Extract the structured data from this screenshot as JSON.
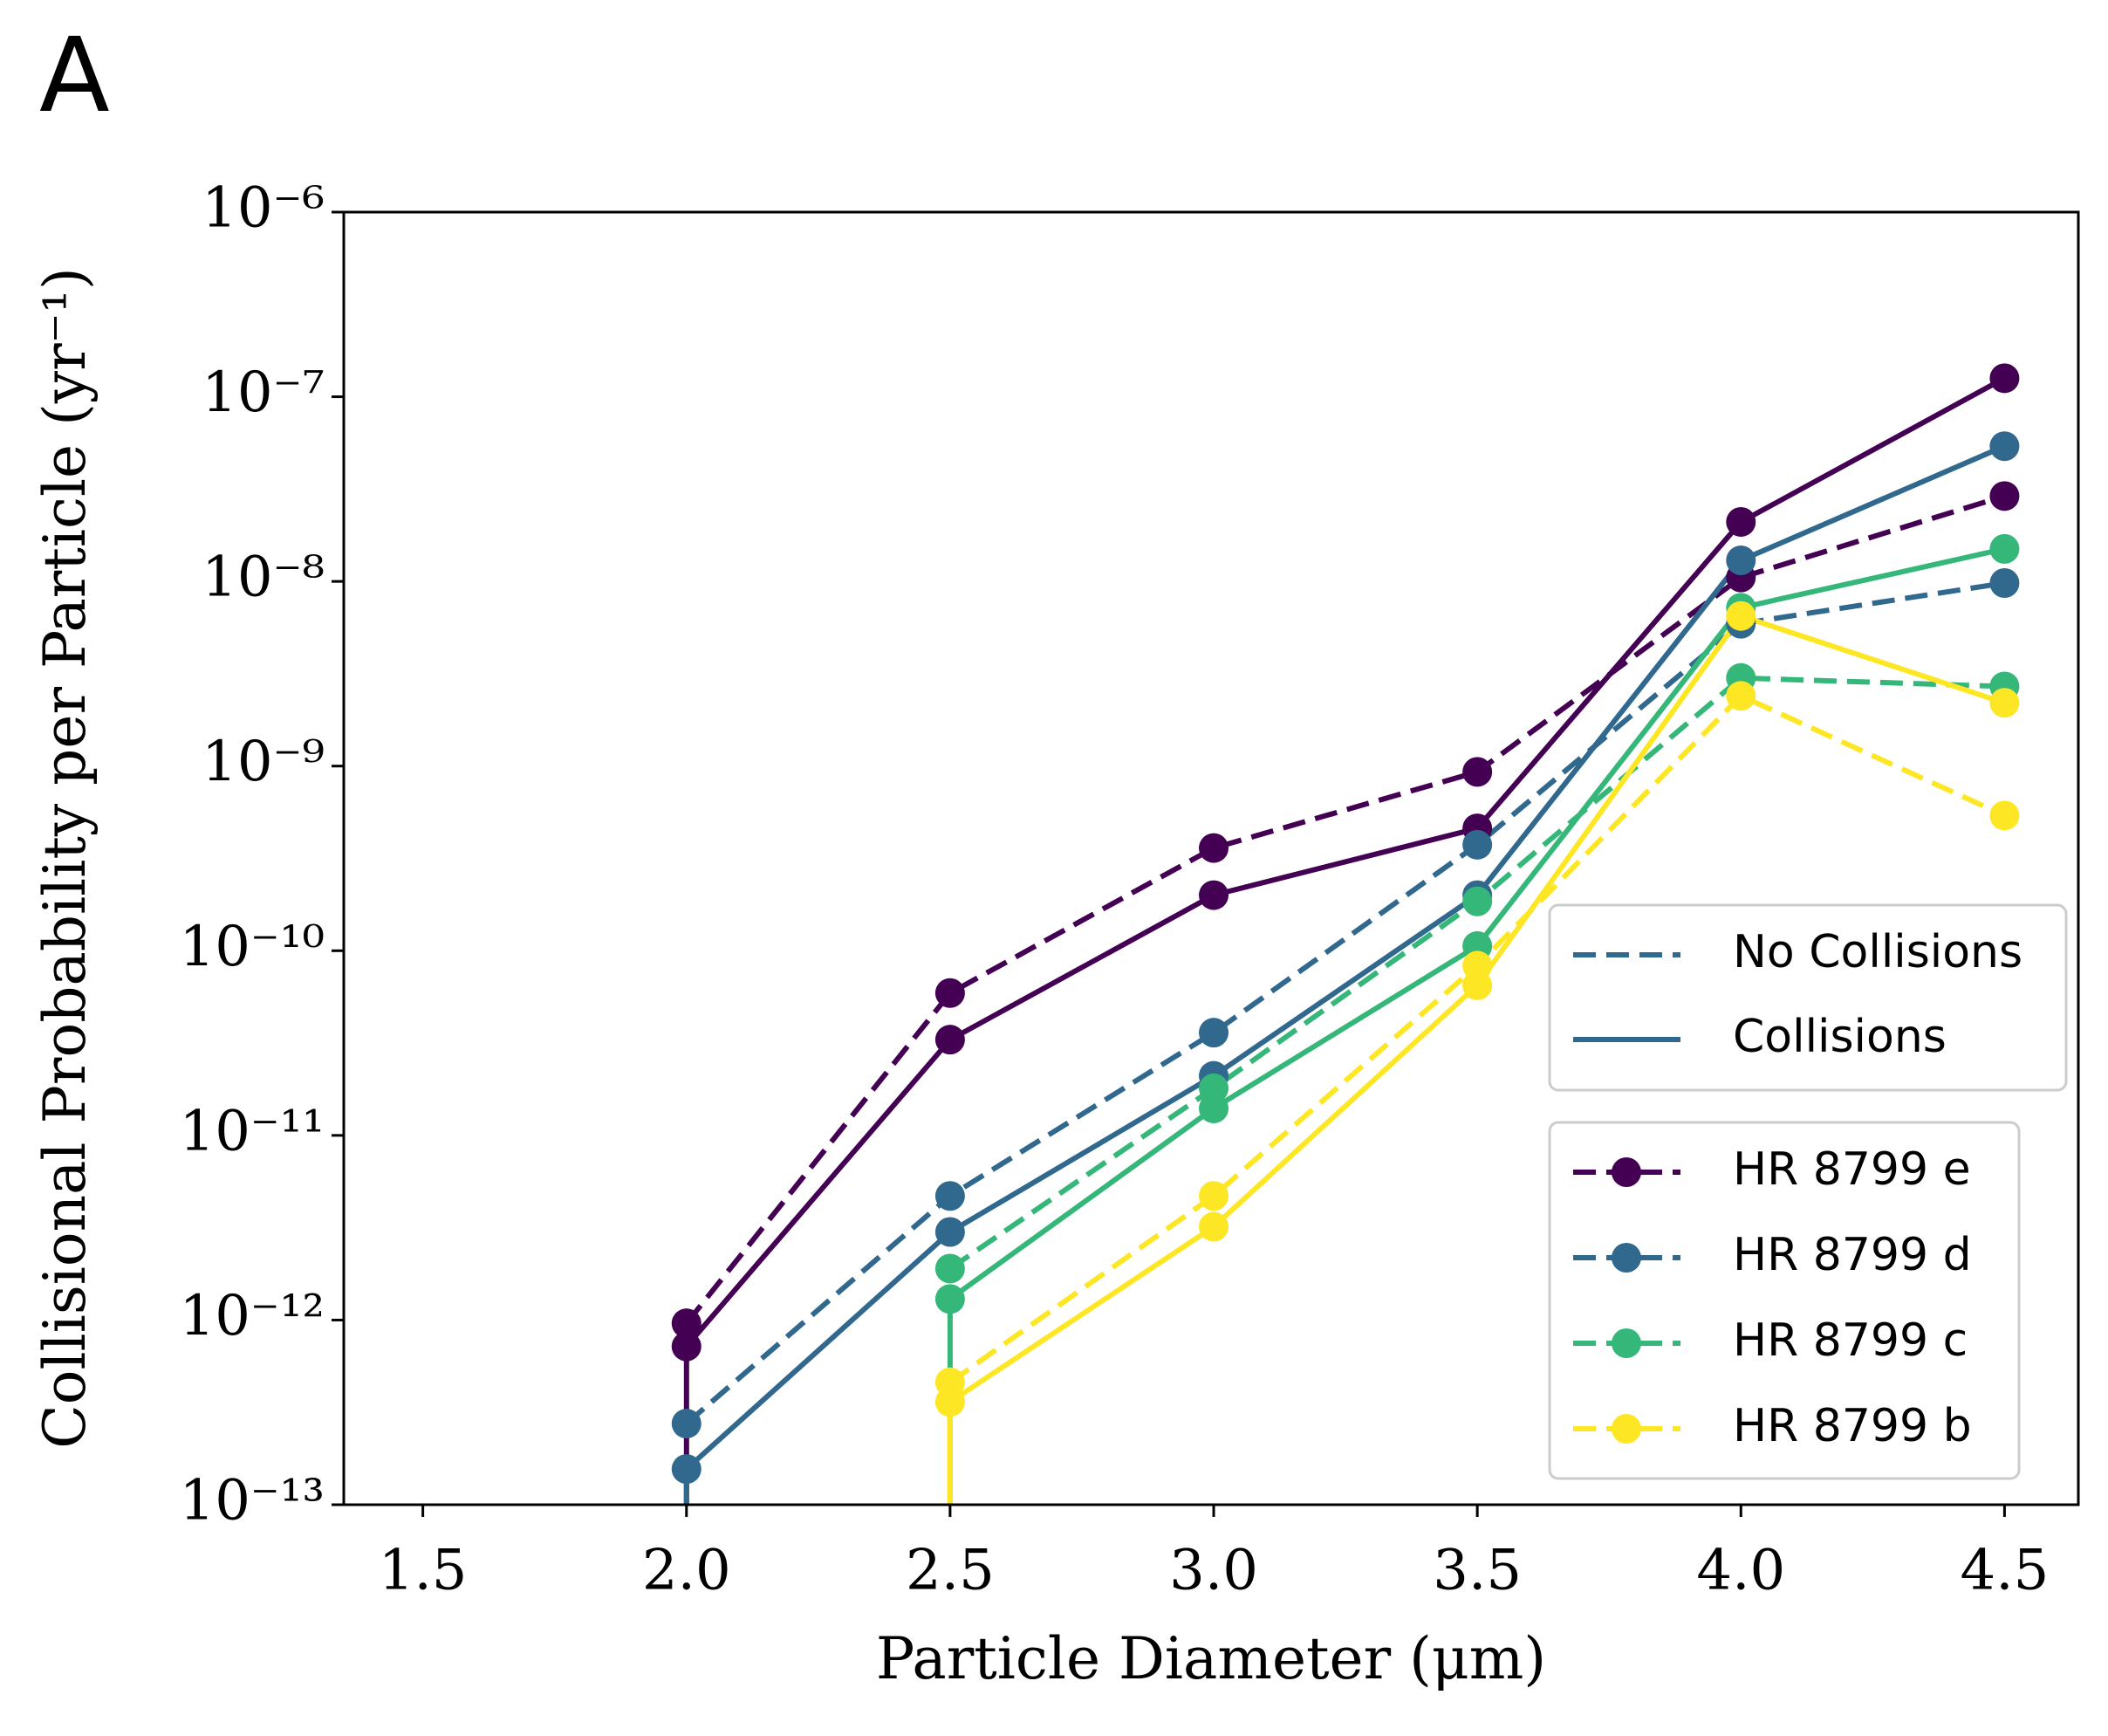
{
  "chart_data": {
    "type": "line",
    "panel_label": "A",
    "x_label": "Particle Diameter (μm)",
    "y_label": "Collisional Probability per Particle (yr⁻¹)",
    "log_y": true,
    "x": [
      1.5,
      2.0,
      2.5,
      3.0,
      3.5,
      4.0,
      4.5
    ],
    "xlim": [
      1.35,
      4.64
    ],
    "xticks": [
      1.5,
      2.0,
      2.5,
      3.0,
      3.5,
      4.0,
      4.5
    ],
    "ylim": [
      1e-13,
      1e-06
    ],
    "yticks": [
      {
        "value": 1e-13,
        "label": "10⁻¹³"
      },
      {
        "value": 1e-12,
        "label": "10⁻¹²"
      },
      {
        "value": 1e-11,
        "label": "10⁻¹¹"
      },
      {
        "value": 1e-10,
        "label": "10⁻¹⁰"
      },
      {
        "value": 1e-09,
        "label": "10⁻⁹"
      },
      {
        "value": 1e-08,
        "label": "10⁻⁸"
      },
      {
        "value": 1e-07,
        "label": "10⁻⁷"
      },
      {
        "value": 1e-06,
        "label": "10⁻⁶"
      }
    ],
    "line_styles": {
      "no_collisions": "No Collisions",
      "collisions": "Collisions",
      "legend_color": "#31688e"
    },
    "legend": "lower right",
    "planets": [
      {
        "name": "HR 8799 e",
        "color": "#440154",
        "no_collisions": [
          null,
          9.6e-13,
          5.9e-11,
          3.6e-10,
          9.3e-10,
          1.05e-08,
          2.9e-08
        ],
        "collisions": [
          0,
          7.2e-13,
          3.3e-11,
          2e-10,
          4.6e-10,
          2.1e-08,
          1.26e-07
        ]
      },
      {
        "name": "HR 8799 d",
        "color": "#31688e",
        "no_collisions": [
          null,
          2.75e-13,
          4.7e-12,
          3.6e-11,
          3.75e-10,
          5.9e-09,
          9.8e-09
        ],
        "collisions": [
          0,
          1.56e-13,
          3e-12,
          2.1e-11,
          2e-10,
          1.3e-08,
          5.4e-08
        ]
      },
      {
        "name": "HR 8799 c",
        "color": "#35b779",
        "no_collisions": [
          null,
          null,
          1.9e-12,
          1.8e-11,
          1.85e-10,
          3e-09,
          2.7e-09
        ],
        "collisions": [
          null,
          0,
          1.3e-12,
          1.4e-11,
          1.06e-10,
          7.2e-09,
          1.5e-08
        ]
      },
      {
        "name": "HR 8799 b",
        "color": "#fde725",
        "no_collisions": [
          null,
          null,
          4.6e-13,
          4.7e-12,
          8.3e-11,
          2.4e-09,
          5.4e-10
        ],
        "collisions": [
          null,
          0,
          3.6e-13,
          3.2e-12,
          6.5e-11,
          6.5e-09,
          2.2e-09
        ]
      }
    ]
  }
}
